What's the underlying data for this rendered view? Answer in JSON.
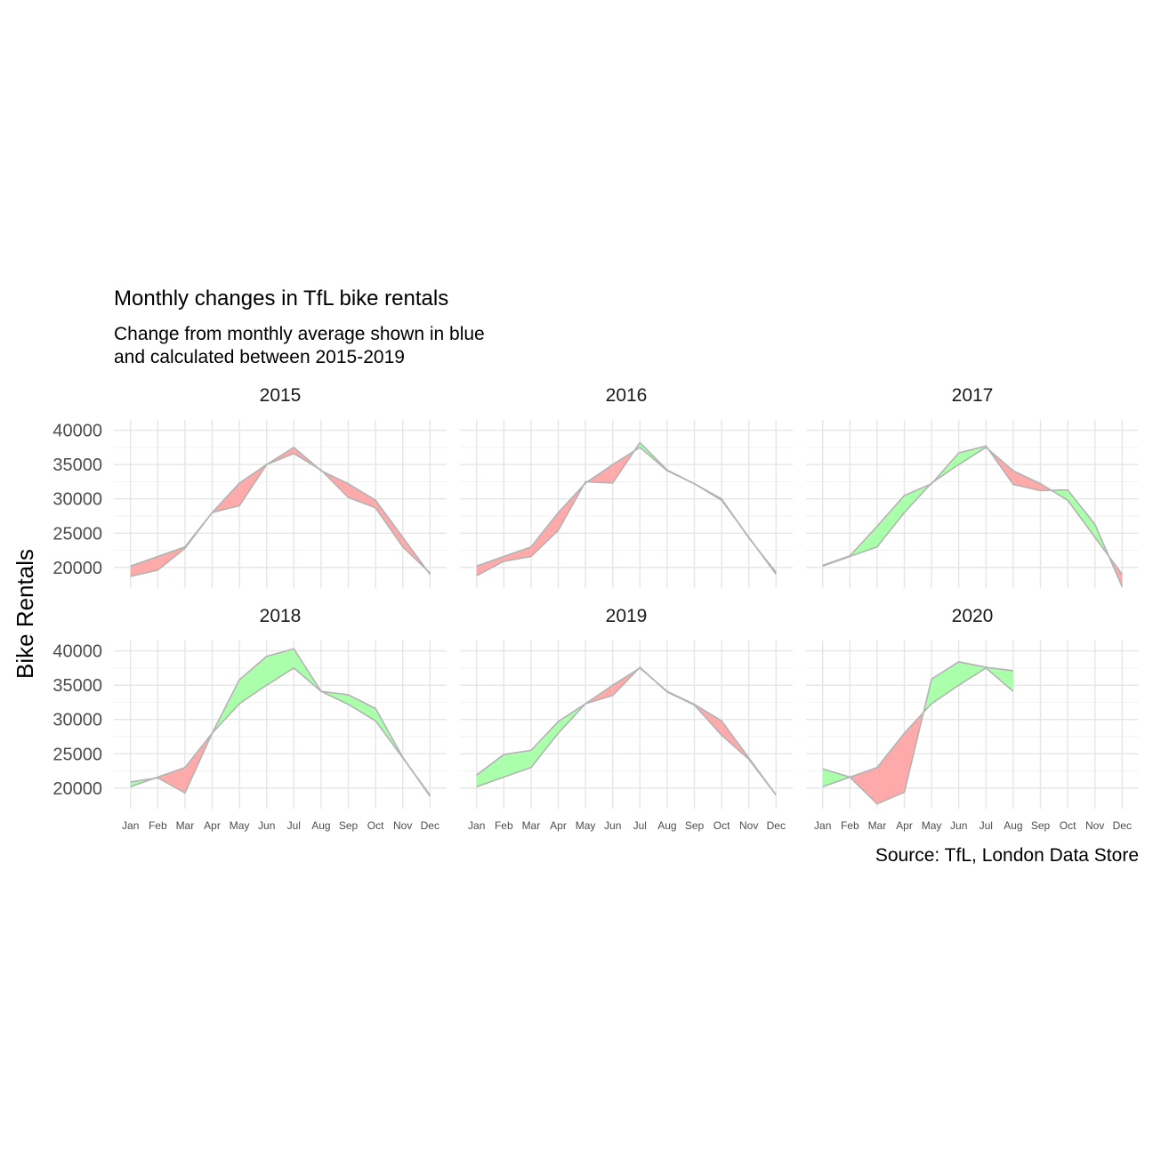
{
  "chart_data": {
    "type": "area",
    "title": "Monthly changes in TfL bike rentals",
    "subtitle_lines": [
      "Change from monthly average shown in blue",
      "and calculated between 2015-2019"
    ],
    "ylabel": "Bike Rentals",
    "caption": "Source: TfL, London Data Store",
    "ylim": [
      17000,
      41500
    ],
    "y_ticks": [
      20000,
      25000,
      30000,
      35000,
      40000
    ],
    "y_tick_labels": [
      "20000",
      "25000",
      "30000",
      "35000",
      "40000"
    ],
    "months": [
      "Jan",
      "Feb",
      "Mar",
      "Apr",
      "May",
      "Jun",
      "Jul",
      "Aug",
      "Sep",
      "Oct",
      "Nov",
      "Dec"
    ],
    "colors": {
      "above": "#aaffaa",
      "below": "#ffaaaa",
      "line": "#b3b3b3",
      "grid": "#e6e6e6"
    },
    "monthly_average": [
      20200,
      21600,
      23000,
      28000,
      32300,
      35000,
      37500,
      34100,
      32200,
      29800,
      24400,
      19000
    ],
    "panels": [
      {
        "year": "2015",
        "actual": [
          18700,
          19600,
          22800,
          28000,
          29000,
          35000,
          36600,
          34200,
          30200,
          28700,
          23000,
          19200
        ]
      },
      {
        "year": "2016",
        "actual": [
          18800,
          20900,
          21600,
          25400,
          32500,
          32300,
          38200,
          34200,
          32200,
          30000,
          24300,
          19300
        ]
      },
      {
        "year": "2017",
        "actual": [
          20300,
          21700,
          26000,
          30500,
          32200,
          36700,
          37700,
          32100,
          31200,
          31300,
          26300,
          17200
        ]
      },
      {
        "year": "2018",
        "actual": [
          20900,
          21500,
          19300,
          28000,
          35800,
          39200,
          40300,
          34100,
          33600,
          31600,
          24500,
          18800
        ]
      },
      {
        "year": "2019",
        "actual": [
          21900,
          24900,
          25500,
          29700,
          32300,
          33500,
          37600,
          34000,
          32100,
          27700,
          24200,
          19000
        ]
      },
      {
        "year": "2020",
        "actual": [
          22800,
          21600,
          17700,
          19400,
          35900,
          38400,
          37600,
          37100
        ]
      }
    ]
  }
}
